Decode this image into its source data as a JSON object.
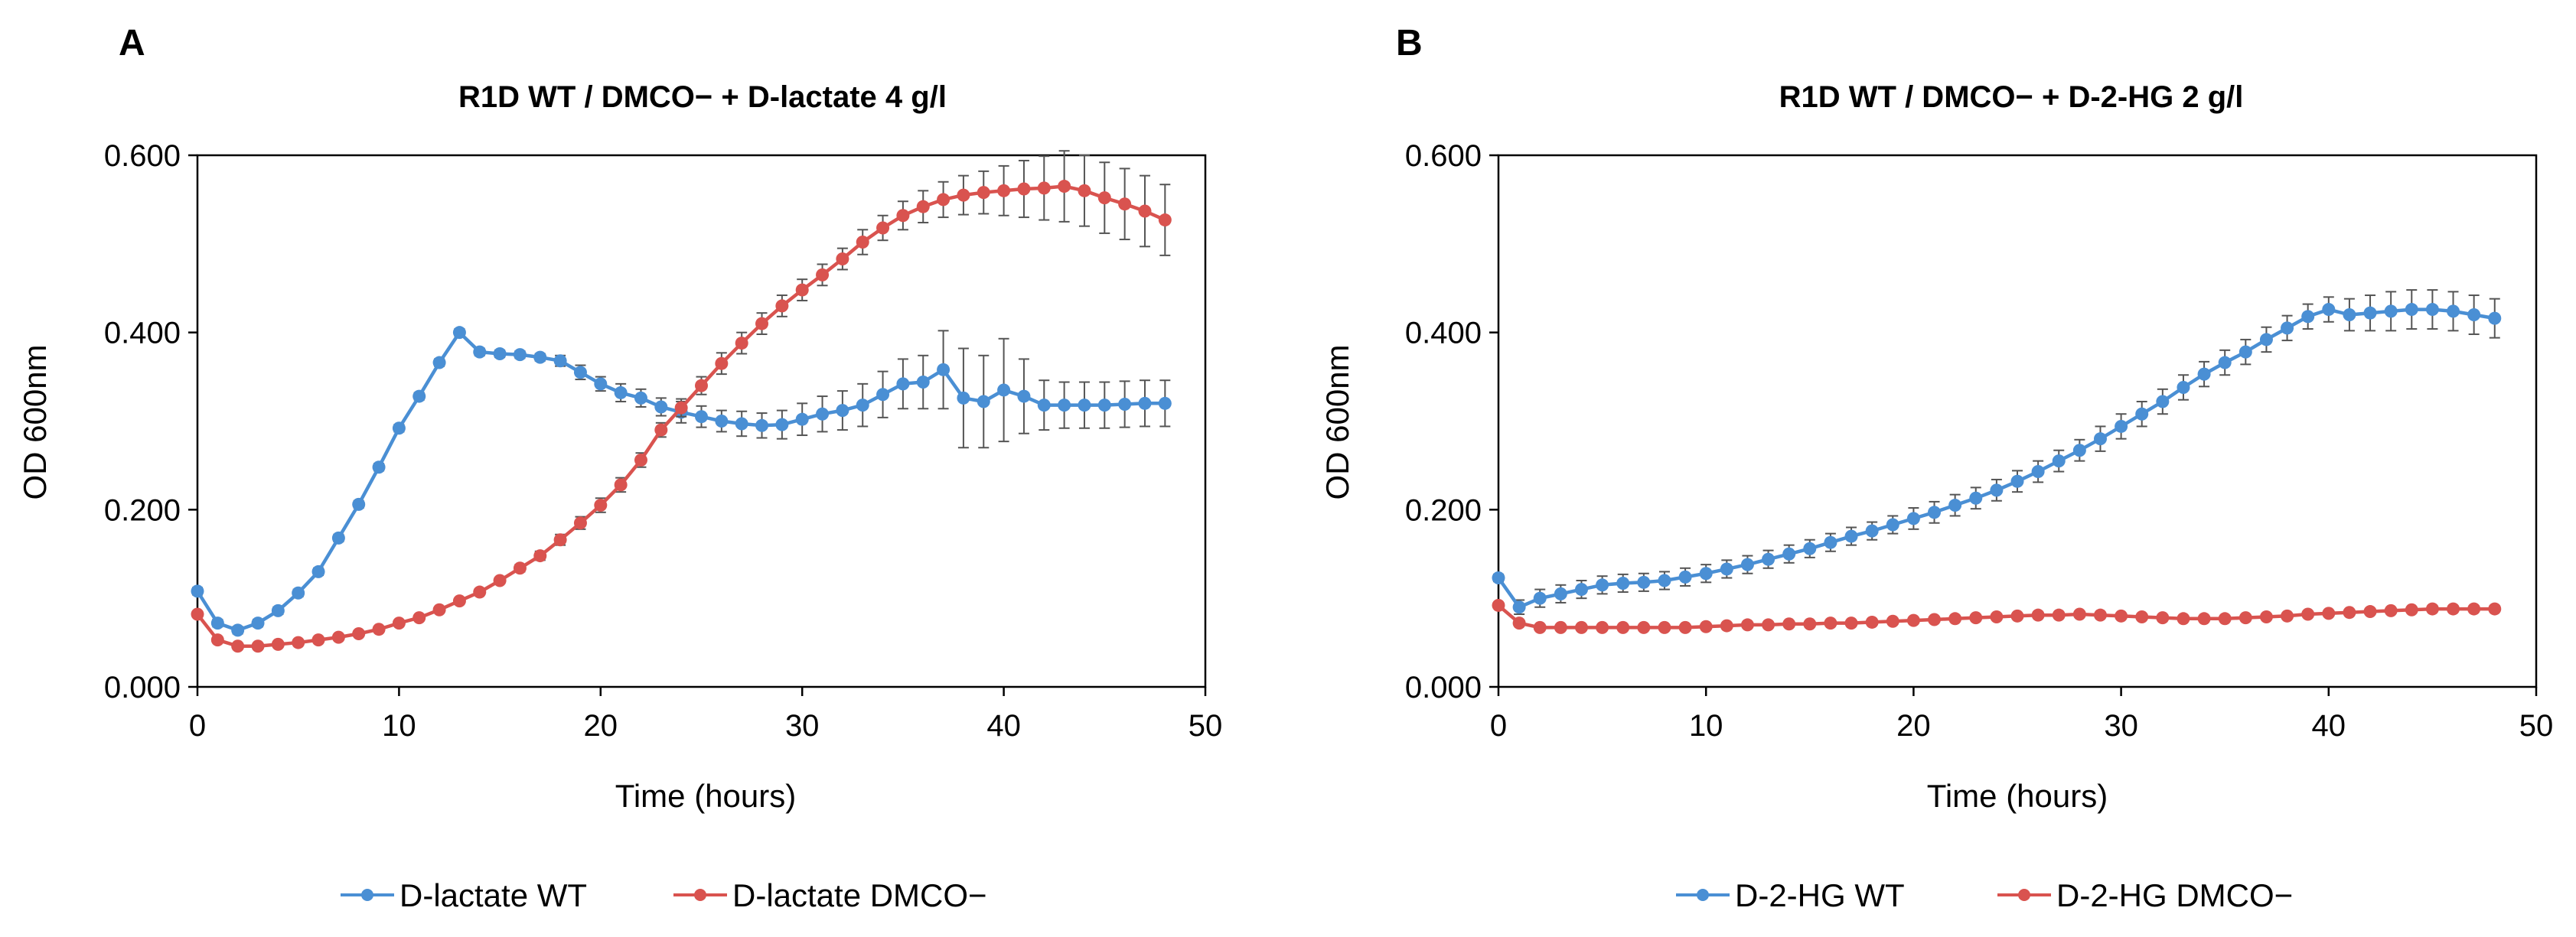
{
  "chart_data": [
    {
      "panel_label": "A",
      "type": "line",
      "title": "R1D WT / DMCO− + D-lactate 4 g/l",
      "xlabel": "Time (hours)",
      "ylabel": "OD 600nm",
      "xlim": [
        0,
        50
      ],
      "ylim": [
        0,
        0.6
      ],
      "xticks": [
        0,
        10,
        20,
        30,
        40,
        50
      ],
      "yticks": [
        0.0,
        0.2,
        0.4,
        0.6
      ],
      "ytick_labels": [
        "0.000",
        "0.200",
        "0.400",
        "0.600"
      ],
      "x": [
        0,
        1,
        2,
        3,
        4,
        5,
        6,
        7,
        8,
        9,
        10,
        11,
        12,
        13,
        14,
        15,
        16,
        17,
        18,
        19,
        20,
        21,
        22,
        23,
        24,
        25,
        26,
        27,
        28,
        29,
        30,
        31,
        32,
        33,
        34,
        35,
        36,
        37,
        38,
        39,
        40,
        41,
        42,
        43,
        44,
        45,
        46,
        47,
        48
      ],
      "series": [
        {
          "name": "D-lactate WT",
          "color": "#4a8fd4",
          "values": [
            0.108,
            0.072,
            0.064,
            0.072,
            0.086,
            0.106,
            0.13,
            0.168,
            0.206,
            0.248,
            0.292,
            0.328,
            0.366,
            0.4,
            0.378,
            0.376,
            0.375,
            0.372,
            0.368,
            0.355,
            0.342,
            0.332,
            0.326,
            0.316,
            0.31,
            0.305,
            0.3,
            0.297,
            0.295,
            0.296,
            0.302,
            0.308,
            0.312,
            0.318,
            0.33,
            0.342,
            0.344,
            0.358,
            0.326,
            0.322,
            0.335,
            0.328,
            0.318,
            0.318,
            0.318,
            0.318,
            0.319,
            0.32,
            0.32
          ],
          "errors": [
            0.004,
            0.004,
            0.004,
            0.004,
            0.004,
            0.004,
            0.004,
            0.004,
            0.004,
            0.004,
            0.004,
            0.004,
            0.004,
            0.004,
            0.004,
            0.004,
            0.004,
            0.004,
            0.006,
            0.008,
            0.008,
            0.01,
            0.01,
            0.01,
            0.012,
            0.012,
            0.012,
            0.014,
            0.014,
            0.016,
            0.018,
            0.02,
            0.022,
            0.024,
            0.026,
            0.028,
            0.03,
            0.044,
            0.056,
            0.052,
            0.058,
            0.042,
            0.028,
            0.026,
            0.026,
            0.026,
            0.026,
            0.026,
            0.026
          ]
        },
        {
          "name": "D-lactate DMCO−",
          "color": "#d9534f",
          "values": [
            0.082,
            0.053,
            0.046,
            0.046,
            0.048,
            0.05,
            0.053,
            0.056,
            0.06,
            0.065,
            0.072,
            0.078,
            0.087,
            0.097,
            0.107,
            0.12,
            0.134,
            0.148,
            0.166,
            0.185,
            0.205,
            0.228,
            0.256,
            0.29,
            0.315,
            0.34,
            0.365,
            0.388,
            0.41,
            0.43,
            0.448,
            0.465,
            0.483,
            0.502,
            0.518,
            0.532,
            0.542,
            0.55,
            0.555,
            0.558,
            0.56,
            0.562,
            0.563,
            0.565,
            0.56,
            0.552,
            0.545,
            0.537,
            0.527
          ],
          "errors": [
            0.003,
            0.003,
            0.003,
            0.003,
            0.003,
            0.003,
            0.003,
            0.003,
            0.003,
            0.003,
            0.003,
            0.003,
            0.003,
            0.003,
            0.003,
            0.003,
            0.004,
            0.005,
            0.006,
            0.007,
            0.008,
            0.008,
            0.008,
            0.008,
            0.01,
            0.01,
            0.012,
            0.012,
            0.012,
            0.012,
            0.012,
            0.012,
            0.012,
            0.014,
            0.014,
            0.016,
            0.018,
            0.02,
            0.022,
            0.024,
            0.028,
            0.032,
            0.036,
            0.04,
            0.04,
            0.04,
            0.04,
            0.04,
            0.04
          ]
        }
      ]
    },
    {
      "panel_label": "B",
      "type": "line",
      "title": "R1D WT / DMCO− + D-2-HG 2 g/l",
      "xlabel": "Time (hours)",
      "ylabel": "OD 600nm",
      "xlim": [
        0,
        50
      ],
      "ylim": [
        0,
        0.6
      ],
      "xticks": [
        0,
        10,
        20,
        30,
        40,
        50
      ],
      "yticks": [
        0.0,
        0.2,
        0.4,
        0.6
      ],
      "ytick_labels": [
        "0.000",
        "0.200",
        "0.400",
        "0.600"
      ],
      "x": [
        0,
        1,
        2,
        3,
        4,
        5,
        6,
        7,
        8,
        9,
        10,
        11,
        12,
        13,
        14,
        15,
        16,
        17,
        18,
        19,
        20,
        21,
        22,
        23,
        24,
        25,
        26,
        27,
        28,
        29,
        30,
        31,
        32,
        33,
        34,
        35,
        36,
        37,
        38,
        39,
        40,
        41,
        42,
        43,
        44,
        45,
        46,
        47,
        48
      ],
      "series": [
        {
          "name": "D-2-HG WT",
          "color": "#4a8fd4",
          "values": [
            0.123,
            0.09,
            0.1,
            0.105,
            0.11,
            0.115,
            0.117,
            0.118,
            0.12,
            0.124,
            0.128,
            0.133,
            0.138,
            0.144,
            0.15,
            0.156,
            0.163,
            0.17,
            0.176,
            0.183,
            0.19,
            0.197,
            0.205,
            0.213,
            0.222,
            0.232,
            0.243,
            0.255,
            0.267,
            0.28,
            0.294,
            0.308,
            0.322,
            0.338,
            0.353,
            0.366,
            0.378,
            0.392,
            0.405,
            0.418,
            0.426,
            0.42,
            0.422,
            0.424,
            0.426,
            0.426,
            0.424,
            0.42,
            0.416
          ],
          "errors": [
            0.004,
            0.008,
            0.01,
            0.01,
            0.01,
            0.01,
            0.01,
            0.01,
            0.01,
            0.01,
            0.01,
            0.01,
            0.01,
            0.01,
            0.01,
            0.01,
            0.01,
            0.01,
            0.01,
            0.01,
            0.012,
            0.012,
            0.012,
            0.012,
            0.012,
            0.012,
            0.012,
            0.012,
            0.012,
            0.014,
            0.014,
            0.014,
            0.014,
            0.014,
            0.014,
            0.014,
            0.014,
            0.014,
            0.014,
            0.014,
            0.014,
            0.018,
            0.02,
            0.022,
            0.022,
            0.022,
            0.022,
            0.022,
            0.022
          ]
        },
        {
          "name": "D-2-HG DMCO−",
          "color": "#d9534f",
          "values": [
            0.092,
            0.072,
            0.067,
            0.067,
            0.067,
            0.067,
            0.067,
            0.067,
            0.067,
            0.067,
            0.068,
            0.069,
            0.07,
            0.07,
            0.071,
            0.071,
            0.072,
            0.072,
            0.073,
            0.074,
            0.075,
            0.076,
            0.077,
            0.078,
            0.079,
            0.08,
            0.081,
            0.081,
            0.082,
            0.081,
            0.08,
            0.079,
            0.078,
            0.077,
            0.077,
            0.077,
            0.078,
            0.079,
            0.08,
            0.082,
            0.083,
            0.084,
            0.085,
            0.086,
            0.087,
            0.088,
            0.088,
            0.088,
            0.088
          ],
          "errors": [
            0.003,
            0.003,
            0.002,
            0.002,
            0.002,
            0.002,
            0.002,
            0.002,
            0.002,
            0.002,
            0.002,
            0.002,
            0.002,
            0.002,
            0.002,
            0.002,
            0.002,
            0.002,
            0.002,
            0.002,
            0.002,
            0.002,
            0.002,
            0.002,
            0.002,
            0.002,
            0.002,
            0.002,
            0.002,
            0.002,
            0.002,
            0.002,
            0.002,
            0.002,
            0.002,
            0.002,
            0.002,
            0.002,
            0.002,
            0.002,
            0.002,
            0.002,
            0.002,
            0.002,
            0.002,
            0.002,
            0.002,
            0.002,
            0.002
          ]
        }
      ]
    }
  ]
}
